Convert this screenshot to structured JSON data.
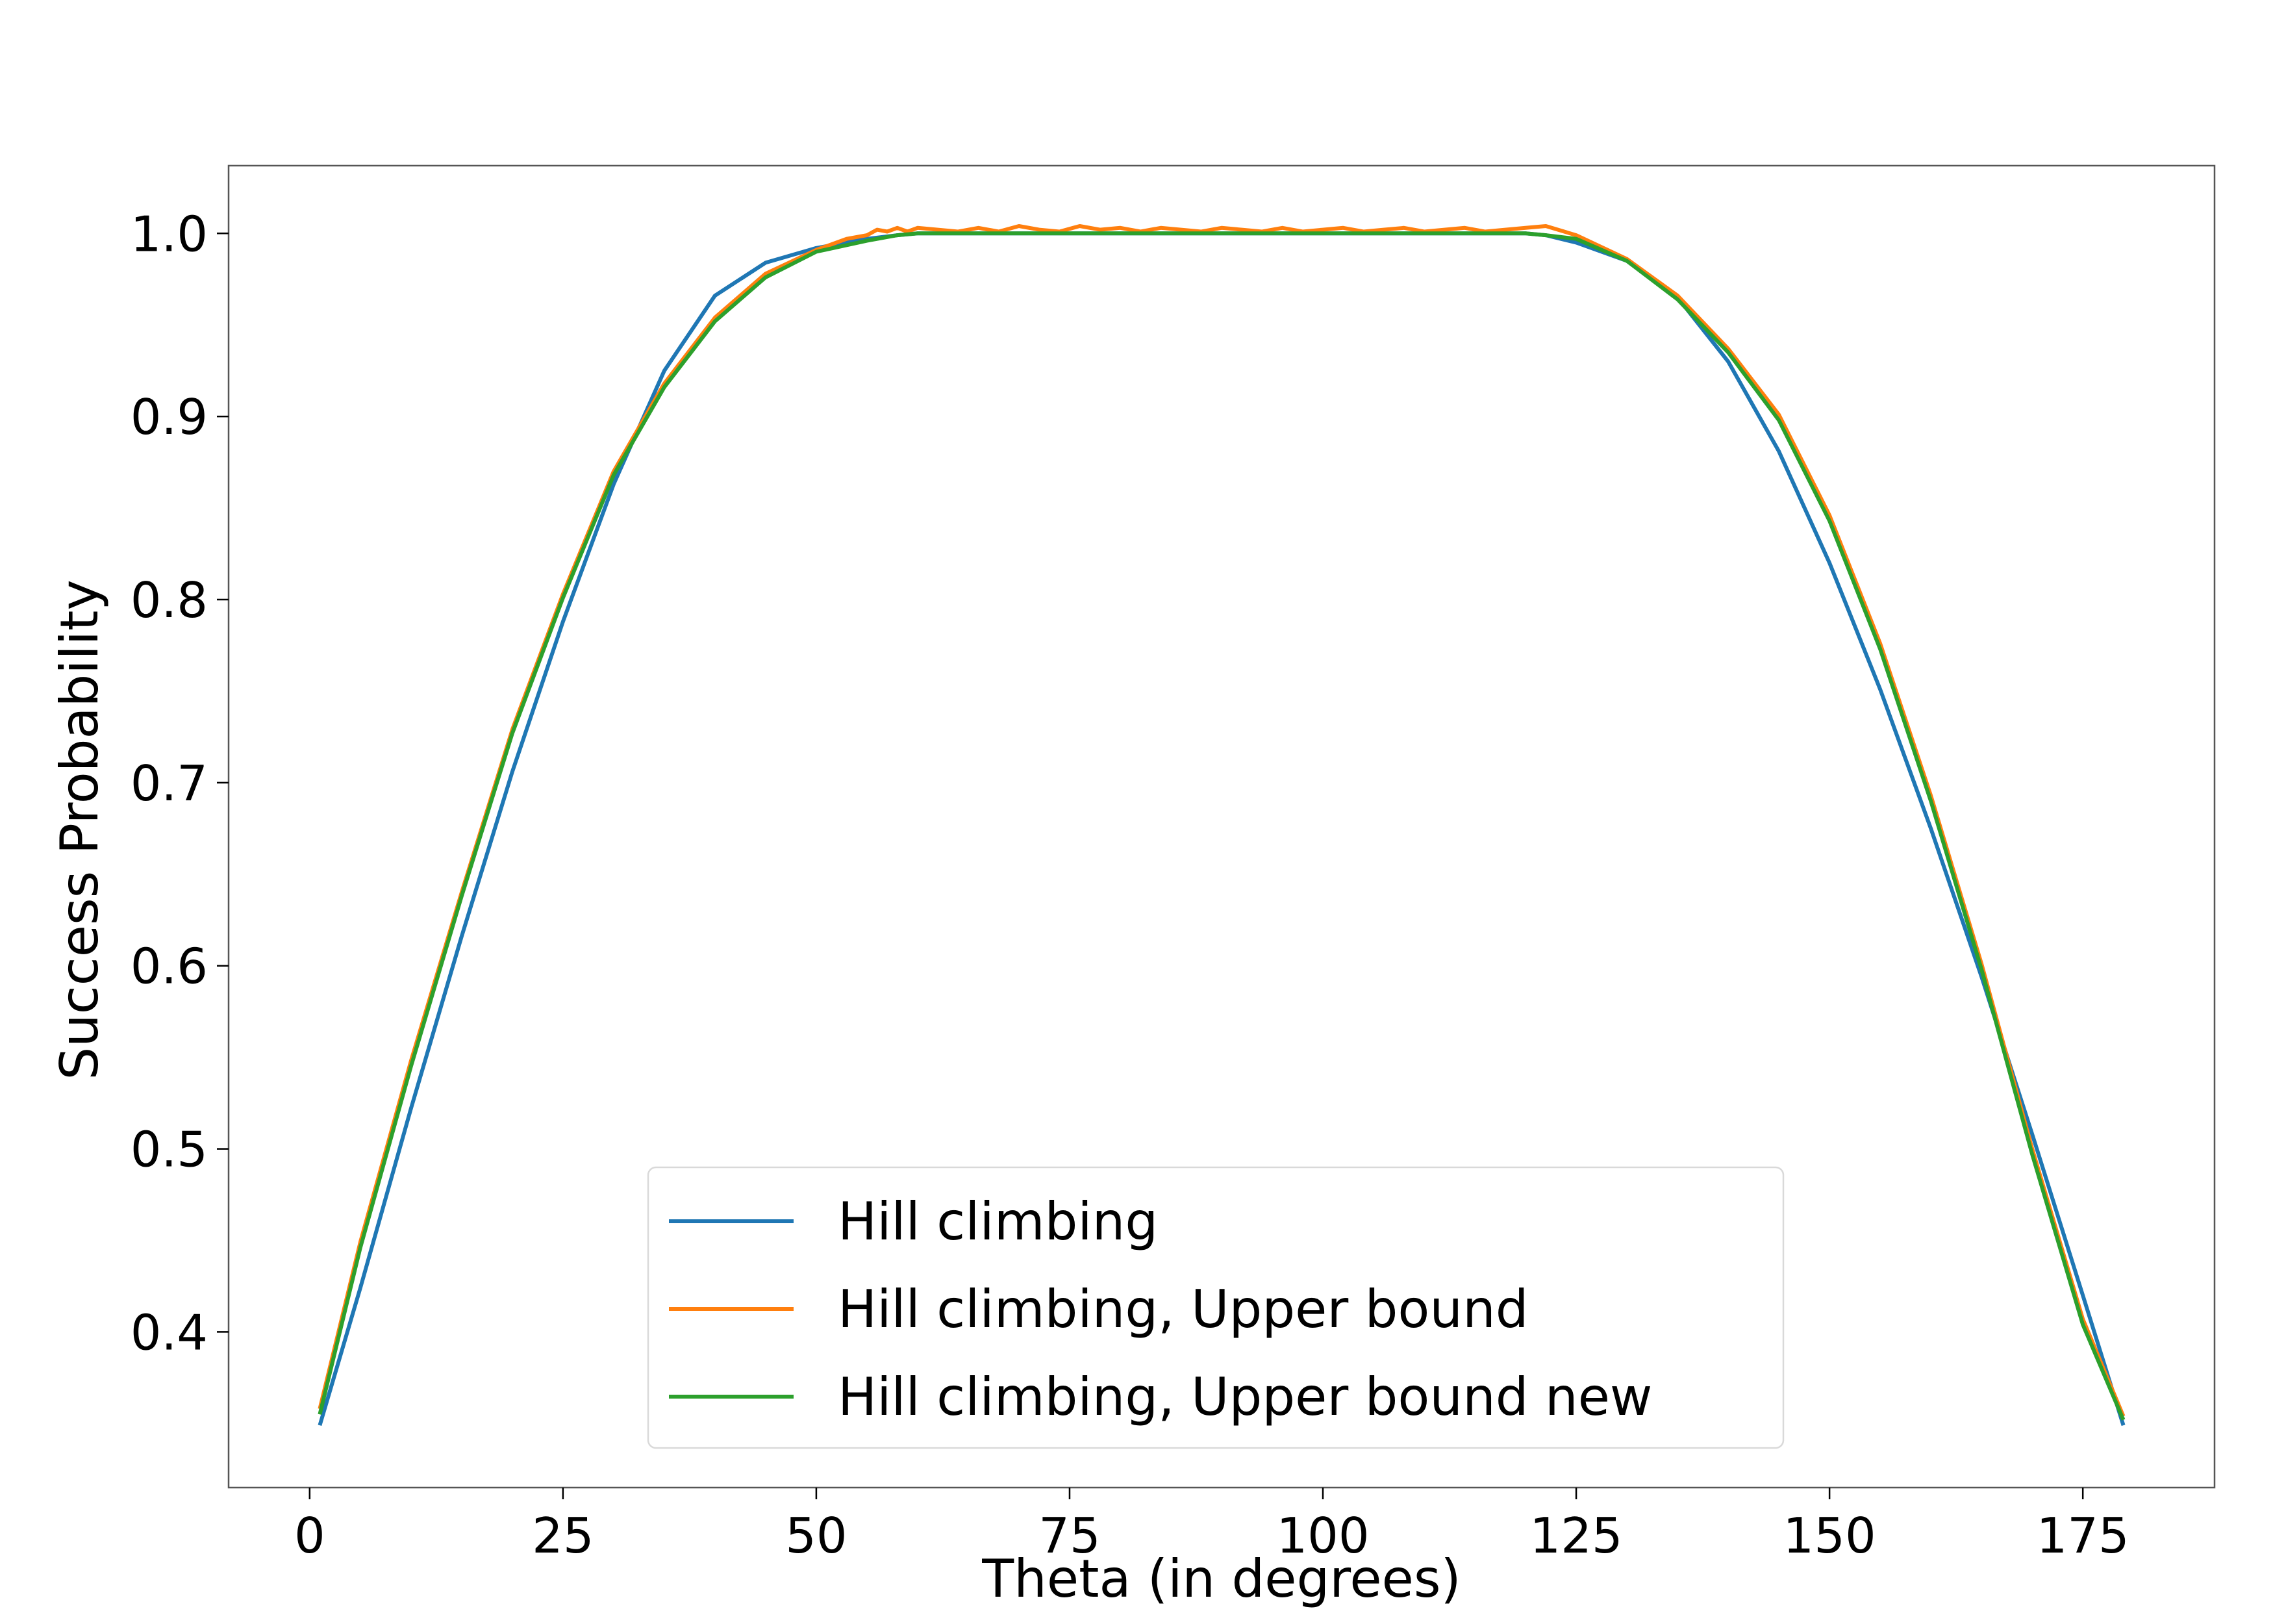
{
  "chart_data": {
    "type": "line",
    "title": "",
    "xlabel": "Theta (in degrees)",
    "ylabel": "Success Probability",
    "xlim": [
      -8,
      188
    ],
    "ylim": [
      0.315,
      1.037
    ],
    "xticks": [
      0,
      25,
      50,
      75,
      100,
      125,
      150,
      175
    ],
    "xtick_labels": [
      "0",
      "25",
      "50",
      "75",
      "100",
      "125",
      "150",
      "175"
    ],
    "yticks": [
      0.4,
      0.5,
      0.6,
      0.7,
      0.8,
      0.9,
      1.0
    ],
    "ytick_labels": [
      "0.4",
      "0.5",
      "0.6",
      "0.7",
      "0.8",
      "0.9",
      "1.0"
    ],
    "grid": false,
    "legend_position": "lower-center",
    "series": [
      {
        "name": "Hill climbing",
        "color": "#1f77b4",
        "x": [
          1,
          5,
          10,
          15,
          20,
          25,
          30,
          35,
          40,
          45,
          50,
          55,
          58,
          60,
          65,
          70,
          75,
          80,
          85,
          90,
          95,
          100,
          105,
          110,
          115,
          120,
          122,
          125,
          130,
          135,
          140,
          145,
          150,
          155,
          160,
          165,
          170,
          175,
          179
        ],
        "y": [
          0.349,
          0.424,
          0.522,
          0.616,
          0.706,
          0.788,
          0.863,
          0.925,
          0.966,
          0.984,
          0.992,
          0.997,
          0.999,
          1.0,
          1.0,
          1.0,
          1.0,
          1.0,
          1.0,
          1.0,
          1.0,
          1.0,
          1.0,
          1.0,
          1.0,
          1.0,
          0.999,
          0.995,
          0.985,
          0.965,
          0.93,
          0.881,
          0.82,
          0.751,
          0.675,
          0.594,
          0.508,
          0.42,
          0.349
        ]
      },
      {
        "name": "Hill climbing, Upper bound",
        "color": "#ff7f0e",
        "x": [
          1,
          5,
          10,
          15,
          20,
          25,
          30,
          35,
          40,
          45,
          50,
          53,
          55,
          56,
          57,
          58,
          59,
          60,
          62,
          64,
          66,
          68,
          70,
          72,
          74,
          76,
          78,
          80,
          82,
          84,
          86,
          88,
          90,
          92,
          94,
          96,
          98,
          100,
          102,
          104,
          106,
          108,
          110,
          112,
          114,
          116,
          118,
          120,
          122,
          125,
          130,
          135,
          140,
          145,
          150,
          155,
          160,
          165,
          170,
          175,
          179
        ],
        "y": [
          0.358,
          0.449,
          0.548,
          0.64,
          0.729,
          0.803,
          0.87,
          0.918,
          0.954,
          0.978,
          0.991,
          0.997,
          0.999,
          1.002,
          1.001,
          1.003,
          1.001,
          1.003,
          1.002,
          1.001,
          1.003,
          1.001,
          1.004,
          1.002,
          1.001,
          1.004,
          1.002,
          1.003,
          1.001,
          1.003,
          1.002,
          1.001,
          1.003,
          1.002,
          1.001,
          1.003,
          1.001,
          1.002,
          1.003,
          1.001,
          1.002,
          1.003,
          1.001,
          1.002,
          1.003,
          1.001,
          1.002,
          1.003,
          1.004,
          0.999,
          0.986,
          0.966,
          0.937,
          0.901,
          0.846,
          0.776,
          0.693,
          0.601,
          0.5,
          0.407,
          0.354
        ]
      },
      {
        "name": "Hill climbing, Upper bound new",
        "color": "#2ca02c",
        "x": [
          1,
          5,
          10,
          15,
          20,
          25,
          30,
          35,
          40,
          45,
          50,
          55,
          58,
          60,
          65,
          70,
          75,
          80,
          85,
          90,
          95,
          100,
          105,
          110,
          115,
          120,
          122,
          125,
          130,
          135,
          140,
          145,
          150,
          155,
          160,
          165,
          170,
          175,
          179
        ],
        "y": [
          0.355,
          0.446,
          0.545,
          0.638,
          0.727,
          0.801,
          0.868,
          0.916,
          0.952,
          0.976,
          0.99,
          0.996,
          0.999,
          1.0,
          1.0,
          1.0,
          1.0,
          1.0,
          1.0,
          1.0,
          1.0,
          1.0,
          1.0,
          1.0,
          1.0,
          1.0,
          0.999,
          0.997,
          0.985,
          0.964,
          0.935,
          0.898,
          0.843,
          0.773,
          0.69,
          0.598,
          0.497,
          0.404,
          0.352
        ]
      }
    ]
  }
}
